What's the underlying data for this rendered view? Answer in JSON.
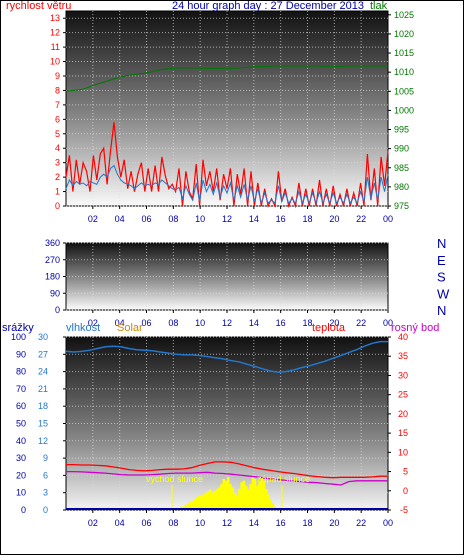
{
  "title": "24 hour graph day : 27 December 2013",
  "colors": {
    "red": "#ff0000",
    "green": "#007700",
    "blue": "#0000aa",
    "orange": "#cc8800",
    "magenta": "#cc00cc",
    "line_blue": "#2277cc",
    "solar": "#ffff00"
  },
  "chart_data": [
    {
      "type": "line",
      "panel": "wind_pressure",
      "left_label": "rychlost větru",
      "right_label": "tlak",
      "x_ticks": [
        "02",
        "04",
        "06",
        "08",
        "10",
        "12",
        "14",
        "16",
        "18",
        "20",
        "22",
        "00"
      ],
      "left_ticks": [
        "0",
        "1",
        "2",
        "3",
        "4",
        "5",
        "6",
        "7",
        "8",
        "9",
        "10",
        "11",
        "12",
        "13"
      ],
      "right_ticks": [
        "975",
        "980",
        "985",
        "990",
        "995",
        "1000",
        "1005",
        "1010",
        "1015",
        "1020",
        "1025"
      ],
      "ylim_left": [
        0,
        13.5
      ],
      "ylim_right": [
        975,
        1026
      ],
      "series": [
        {
          "axis": "right",
          "color": "green",
          "values": [
            1005.0,
            1005.2,
            1005.4,
            1005.8,
            1006.5,
            1007.1,
            1007.6,
            1008.2,
            1008.7,
            1009.1,
            1009.4,
            1009.6,
            1009.8,
            1010.2,
            1010.6,
            1010.9,
            1011.0,
            1011.1,
            1011.1,
            1011.1,
            1011.0,
            1011.0,
            1011.0,
            1011.0,
            1011.0,
            1011.0,
            1011.1,
            1011.3,
            1011.4,
            1011.5,
            1011.5,
            1011.6,
            1011.6,
            1011.6,
            1011.6,
            1011.6,
            1011.6,
            1011.6,
            1011.6,
            1011.5,
            1011.5,
            1011.5,
            1011.6,
            1011.6,
            1011.6,
            1011.6,
            1011.6,
            1011.6,
            1011.6
          ]
        },
        {
          "axis": "left",
          "color": "red",
          "values": [
            2,
            3.5,
            1,
            3.2,
            1.5,
            3,
            2.4,
            1,
            3.5,
            1.8,
            3.6,
            4,
            1.5,
            3.8,
            5.8,
            3.4,
            2,
            3.2,
            1.2,
            2.4,
            1,
            2.2,
            3,
            1,
            2.6,
            1,
            2.8,
            1,
            3.4,
            2.1,
            1.2,
            1.5,
            1,
            2.6,
            0,
            2.4,
            1,
            0.5,
            2.9,
            0,
            3.2,
            1.4,
            2.4,
            1,
            2.6,
            0.4,
            2.2,
            1.2,
            2.6,
            0,
            2.2,
            0.8,
            2.6,
            0,
            2.4,
            0,
            1.6,
            0,
            1.2,
            0,
            0.5,
            0,
            2.4,
            0.3,
            1.2,
            0,
            0.6,
            0,
            1.6,
            0,
            1.2,
            0,
            1.2,
            0,
            1.8,
            0,
            1.2,
            0,
            1.4,
            0,
            0.8,
            0,
            1.2,
            0,
            0.9,
            0,
            1.6,
            0,
            3.6,
            0.4,
            2.6,
            0,
            3.4,
            1.4,
            3.8
          ]
        },
        {
          "axis": "left",
          "color": "line_blue",
          "values": [
            1.2,
            1.8,
            1.4,
            1.7,
            1.5,
            1.6,
            1.4,
            1.7,
            1.6,
            1.5,
            2.0,
            2.2,
            2.0,
            2.6,
            2.8,
            2.2,
            1.8,
            1.6,
            1.5,
            1.4,
            1.2,
            1.4,
            1.6,
            1.4,
            1.5,
            1.4,
            1.6,
            1.5,
            1.8,
            1.6,
            1.4,
            1.2,
            1.1,
            1.3,
            0.5,
            1.4,
            0.8,
            0.4,
            1.6,
            0.3,
            1.8,
            1.0,
            1.5,
            0.8,
            1.6,
            0.6,
            1.4,
            0.9,
            1.6,
            0.4,
            1.4,
            0.6,
            1.5,
            0.4,
            1.4,
            0.3,
            1.2,
            0.2,
            0.9,
            0.2,
            0.4,
            0.2,
            1.4,
            0.3,
            0.9,
            0.2,
            0.5,
            0.2,
            1.0,
            0.2,
            0.8,
            0.2,
            0.9,
            0.2,
            1.0,
            0.2,
            0.8,
            0.2,
            0.9,
            0.2,
            0.6,
            0.2,
            0.8,
            0.2,
            0.6,
            0.2,
            1.0,
            0.3,
            2.0,
            0.5,
            1.6,
            0.4,
            2.0,
            1.0,
            2.2
          ]
        }
      ]
    },
    {
      "type": "line",
      "panel": "wind_direction",
      "left_ticks": [
        "0",
        "90",
        "180",
        "270",
        "360"
      ],
      "right_ticks": [
        "N",
        "W",
        "S",
        "E",
        "N"
      ],
      "ylim": [
        0,
        360
      ],
      "series": []
    },
    {
      "type": "line",
      "panel": "humidity_temp",
      "labels": {
        "srazky": "srážky",
        "vlhkost": "vlhkost",
        "solar": "Solar",
        "teplota": "teplota",
        "rosny": "rosný bod"
      },
      "annotations": {
        "sunrise": "východ slunce",
        "sunset": "západ slunce"
      },
      "axis_ticks_rain": [
        "0",
        "10",
        "20",
        "30",
        "40",
        "50",
        "60",
        "70",
        "80",
        "90",
        "100"
      ],
      "axis_ticks_humidity": [
        "0",
        "3",
        "6",
        "9",
        "12",
        "15",
        "18",
        "21",
        "24",
        "27",
        "30"
      ],
      "axis_ticks_temp": [
        "-5",
        "0",
        "5",
        "10",
        "15",
        "20",
        "25",
        "30",
        "35",
        "40"
      ],
      "ylim_humidity": [
        0,
        30
      ],
      "ylim_temp": [
        -5,
        40
      ],
      "sunrise_hour": 7.9,
      "sunset_hour": 16.1,
      "series": [
        {
          "name": "vlhkost",
          "axis": "humidity",
          "color": "line_blue",
          "values": [
            27.5,
            27.4,
            27.5,
            27.7,
            28.0,
            28.3,
            28.4,
            28.3,
            28.0,
            27.8,
            27.7,
            27.6,
            27.4,
            27.2,
            27.0,
            26.9,
            26.9,
            26.8,
            26.6,
            26.4,
            26.2,
            25.9,
            25.7,
            25.3,
            24.9,
            24.5,
            24.1,
            23.9,
            24.0,
            24.3,
            24.7,
            25.0,
            25.4,
            25.8,
            26.3,
            26.8,
            27.3,
            27.8,
            28.4,
            28.9,
            29.2,
            29.2
          ]
        },
        {
          "name": "teplota",
          "axis": "temp",
          "color": "red",
          "values": [
            6.8,
            6.8,
            6.7,
            6.7,
            6.6,
            6.5,
            6.2,
            5.9,
            5.5,
            5.3,
            5.2,
            5.3,
            5.5,
            5.6,
            5.6,
            5.7,
            6.0,
            6.6,
            7.1,
            7.5,
            7.5,
            7.4,
            7.0,
            6.5,
            6.0,
            5.6,
            5.3,
            5.0,
            4.7,
            4.5,
            4.2,
            3.9,
            3.7,
            3.5,
            3.4,
            3.5,
            3.5,
            3.5,
            3.5,
            3.6,
            3.8,
            3.8
          ]
        },
        {
          "name": "rosný bod",
          "axis": "temp",
          "color": "magenta",
          "values": [
            5.0,
            5.0,
            4.9,
            4.8,
            4.7,
            4.6,
            4.4,
            4.2,
            4.1,
            4.1,
            4.1,
            4.2,
            4.3,
            4.5,
            4.6,
            4.6,
            4.6,
            4.7,
            4.8,
            4.6,
            4.5,
            4.3,
            4.1,
            3.9,
            3.7,
            3.4,
            3.1,
            2.9,
            2.7,
            2.5,
            2.4,
            2.2,
            2.1,
            1.9,
            1.7,
            1.5,
            2.4,
            2.6,
            2.6,
            2.6,
            2.6,
            2.6
          ]
        },
        {
          "name": "Solar",
          "axis": "rain",
          "color": "solar",
          "values": [
            0,
            0,
            0,
            0,
            0,
            0,
            0,
            0,
            0,
            0,
            0,
            0,
            0,
            0,
            0,
            0,
            0,
            0,
            0,
            0,
            0,
            0,
            0,
            0,
            0,
            0,
            0,
            0,
            0,
            0,
            0,
            0,
            0,
            0,
            0,
            0,
            0,
            0,
            0,
            0,
            0,
            0,
            0,
            0,
            0,
            0,
            0,
            0,
            0,
            0,
            1,
            2,
            2,
            3,
            4,
            5,
            5,
            6,
            7,
            8,
            8,
            9,
            10,
            11,
            12,
            10,
            11,
            12,
            13,
            15,
            18,
            17,
            19,
            15,
            13,
            10,
            8,
            12,
            16,
            17,
            14,
            12,
            15,
            20,
            18,
            14,
            16,
            19,
            17,
            12,
            9,
            6,
            4,
            2,
            1,
            0,
            0,
            0,
            0,
            0,
            0,
            0,
            0,
            0,
            0,
            0,
            0,
            0,
            0,
            0,
            0,
            0,
            0,
            0,
            0,
            0,
            0,
            0,
            0,
            0,
            0,
            0,
            0,
            0,
            0,
            0,
            0,
            0,
            0,
            0,
            0,
            0,
            0,
            0,
            0,
            0,
            0,
            0,
            0,
            0,
            0,
            0,
            0,
            0
          ]
        }
      ]
    }
  ]
}
